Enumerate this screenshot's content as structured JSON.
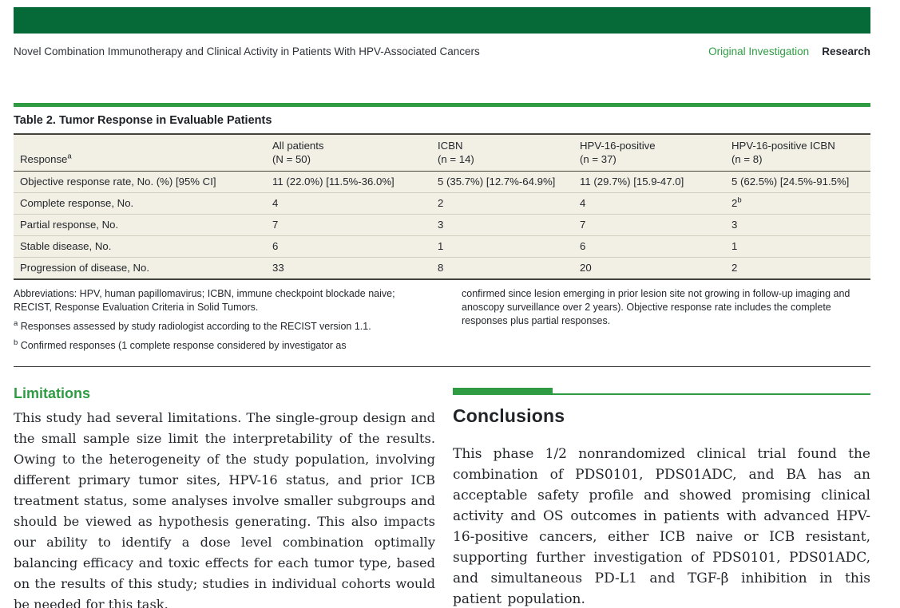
{
  "colors": {
    "brand_dark_green": "#066A38",
    "brand_green": "#2F9C43",
    "table_beige": "#F2EFE4",
    "rule_dark": "#44443D",
    "text_dark": "#22262B"
  },
  "header": {
    "running_head": "Novel Combination Immunotherapy and Clinical Activity in Patients With HPV-Associated Cancers",
    "category_label": "Original Investigation",
    "section_label": "Research"
  },
  "table": {
    "title": "Table 2. Tumor Response in Evaluable Patients",
    "columns": [
      {
        "label": "Response^a",
        "sub": ""
      },
      {
        "label": "All patients",
        "sub": "(N = 50)"
      },
      {
        "label": "ICBN",
        "sub": "(n = 14)"
      },
      {
        "label": "HPV-16-positive",
        "sub": "(n = 37)"
      },
      {
        "label": "HPV-16-positive ICBN",
        "sub": "(n = 8)"
      }
    ],
    "rows": [
      {
        "label": "Objective response rate, No. (%) [95% CI]",
        "values": [
          "11 (22.0%) [11.5%-36.0%]",
          "5 (35.7%) [12.7%-64.9%]",
          "11 (29.7%) [15.9-47.0]",
          "5 (62.5%) [24.5%-91.5%]"
        ]
      },
      {
        "label": "Complete response, No.",
        "values": [
          "4",
          "2",
          "4",
          "2^b"
        ]
      },
      {
        "label": "Partial response, No.",
        "values": [
          "7",
          "3",
          "7",
          "3"
        ]
      },
      {
        "label": "Stable disease, No.",
        "values": [
          "6",
          "1",
          "6",
          "1"
        ]
      },
      {
        "label": "Progression of disease, No.",
        "values": [
          "33",
          "8",
          "20",
          "2"
        ]
      }
    ],
    "footnotes": {
      "left": [
        {
          "marker": "",
          "text": "Abbreviations: HPV, human papillomavirus; ICBN, immune checkpoint blockade naive; RECIST, Response Evaluation Criteria in Solid Tumors."
        },
        {
          "marker": "a",
          "text": "Responses assessed by study radiologist according to the RECIST version 1.1."
        },
        {
          "marker": "b",
          "text": "Confirmed responses (1 complete response considered by investigator as"
        }
      ],
      "right": [
        {
          "marker": "",
          "text": "confirmed since lesion emerging in prior lesion site not growing in follow-up imaging and anoscopy surveillance over 2 years). Objective response rate includes the complete responses plus partial responses."
        }
      ]
    }
  },
  "sections": {
    "limitations": {
      "heading": "Limitations",
      "body": "This study had several limitations. The single-group design and the small sample size limit the interpretability of the results. Owing to the heterogeneity of the study population, involving different primary tumor sites, HPV-16 status, and prior ICB treatment status, some analyses involve smaller subgroups and should be viewed as hypothesis generating. This also impacts our ability to identify a dose level combination optimally balancing efficacy and toxic effects for each tumor type, based on the results of this study; studies in individual cohorts would be needed for this task."
    },
    "conclusions": {
      "heading": "Conclusions",
      "body": "This phase 1/2 nonrandomized clinical trial found the combination of PDS0101, PDS01ADC, and BA has an acceptable safety profile and showed promising clinical activity and OS outcomes in patients with advanced HPV-16-positive cancers, either ICB naive or ICB resistant, supporting further investigation of PDS0101, PDS01ADC, and simultaneous PD-L1 and TGF-β inhibition in this patient population."
    }
  }
}
